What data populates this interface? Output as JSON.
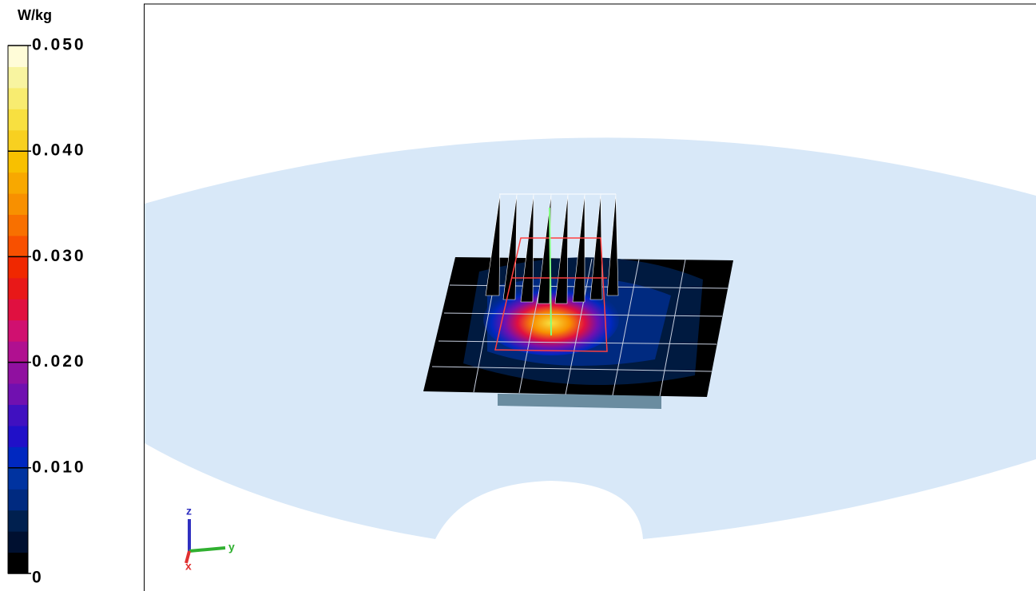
{
  "legend": {
    "unit": "W/kg",
    "range": [
      0,
      0.05
    ],
    "ticks": [
      {
        "value": 0.05,
        "label": "0.050"
      },
      {
        "value": 0.04,
        "label": "0.040"
      },
      {
        "value": 0.03,
        "label": "0.030"
      },
      {
        "value": 0.02,
        "label": "0.020"
      },
      {
        "value": 0.01,
        "label": "0.010"
      },
      {
        "value": 0,
        "label": "0"
      }
    ],
    "colors": [
      "#000000",
      "#001030",
      "#00204f",
      "#002a80",
      "#0033a0",
      "#0028c0",
      "#2010c8",
      "#4010c0",
      "#7010b0",
      "#9010a0",
      "#b01090",
      "#d01070",
      "#e01040",
      "#e81818",
      "#f02800",
      "#f85000",
      "#f87000",
      "#f89000",
      "#f8a800",
      "#f8c000",
      "#f8d020",
      "#f8e040",
      "#f8ec70",
      "#f8f4a0",
      "#fffcd8"
    ]
  },
  "axes": {
    "z": "z",
    "y": "y",
    "x": "x"
  }
}
